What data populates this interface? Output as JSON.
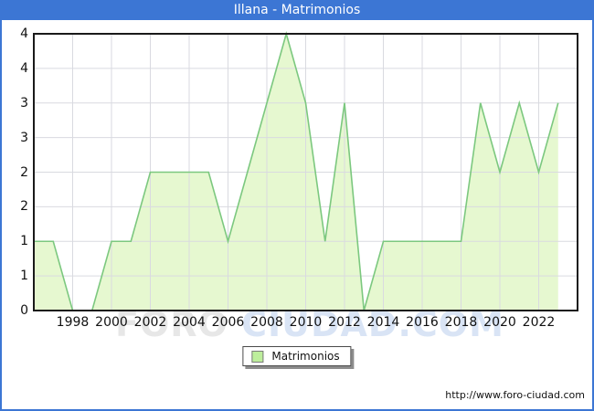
{
  "title": "Illana - Matrimonios",
  "watermark": {
    "part1": "FORO",
    "part2": "CIUDAD.COM"
  },
  "legend": {
    "label": "Matrimonios"
  },
  "footer": {
    "url": "http://www.foro-ciudad.com"
  },
  "colors": {
    "titlebar_bg": "#3c76d4",
    "frame_border": "#3c76d4",
    "title_text": "#ffffff",
    "plot_border": "#1a1a1a",
    "grid": "#d9dae0",
    "area_fill": "#e6f8d0",
    "area_line": "#7cc87f",
    "legend_swatch_fill": "#bdee9c",
    "legend_swatch_border": "#7a7a7a",
    "watermark_part1": "#e7e7e7",
    "watermark_part2": "#d9e4f5"
  },
  "chart_data": {
    "type": "area",
    "title": "Illana - Matrimonios",
    "series_name": "Matrimonios",
    "x": [
      1996,
      1997,
      1998,
      1999,
      2000,
      2001,
      2002,
      2003,
      2004,
      2005,
      2006,
      2007,
      2008,
      2009,
      2010,
      2011,
      2012,
      2013,
      2014,
      2015,
      2016,
      2017,
      2018,
      2019,
      2020,
      2021,
      2022,
      2023
    ],
    "values": [
      1,
      1,
      0,
      0,
      1,
      1,
      2,
      2,
      2,
      2,
      1,
      2,
      3,
      4,
      3,
      1,
      3,
      0,
      1,
      1,
      1,
      1,
      1,
      3,
      2,
      3,
      2,
      3
    ],
    "x_axis_range": [
      1996,
      2024
    ],
    "y_axis_range": [
      0,
      4
    ],
    "grid": true,
    "legend_position": "bottom-center",
    "x_ticks": [
      {
        "year": 1998,
        "label": "1998"
      },
      {
        "year": 2000,
        "label": "2000"
      },
      {
        "year": 2002,
        "label": "2002"
      },
      {
        "year": 2004,
        "label": "2004"
      },
      {
        "year": 2006,
        "label": "2006"
      },
      {
        "year": 2008,
        "label": "2008"
      },
      {
        "year": 2010,
        "label": "2010"
      },
      {
        "year": 2012,
        "label": "2012"
      },
      {
        "year": 2014,
        "label": "2014"
      },
      {
        "year": 2016,
        "label": "2016"
      },
      {
        "year": 2018,
        "label": "2018"
      },
      {
        "year": 2020,
        "label": "2020"
      },
      {
        "year": 2022,
        "label": "2022"
      }
    ],
    "y_ticks": [
      {
        "value": 4,
        "label": "4"
      },
      {
        "value": 3.5,
        "label": "4"
      },
      {
        "value": 3,
        "label": "3"
      },
      {
        "value": 2.5,
        "label": "3"
      },
      {
        "value": 2,
        "label": "2"
      },
      {
        "value": 1.5,
        "label": "2"
      },
      {
        "value": 1,
        "label": "1"
      },
      {
        "value": 0.5,
        "label": "1"
      },
      {
        "value": 0,
        "label": "0"
      }
    ]
  }
}
